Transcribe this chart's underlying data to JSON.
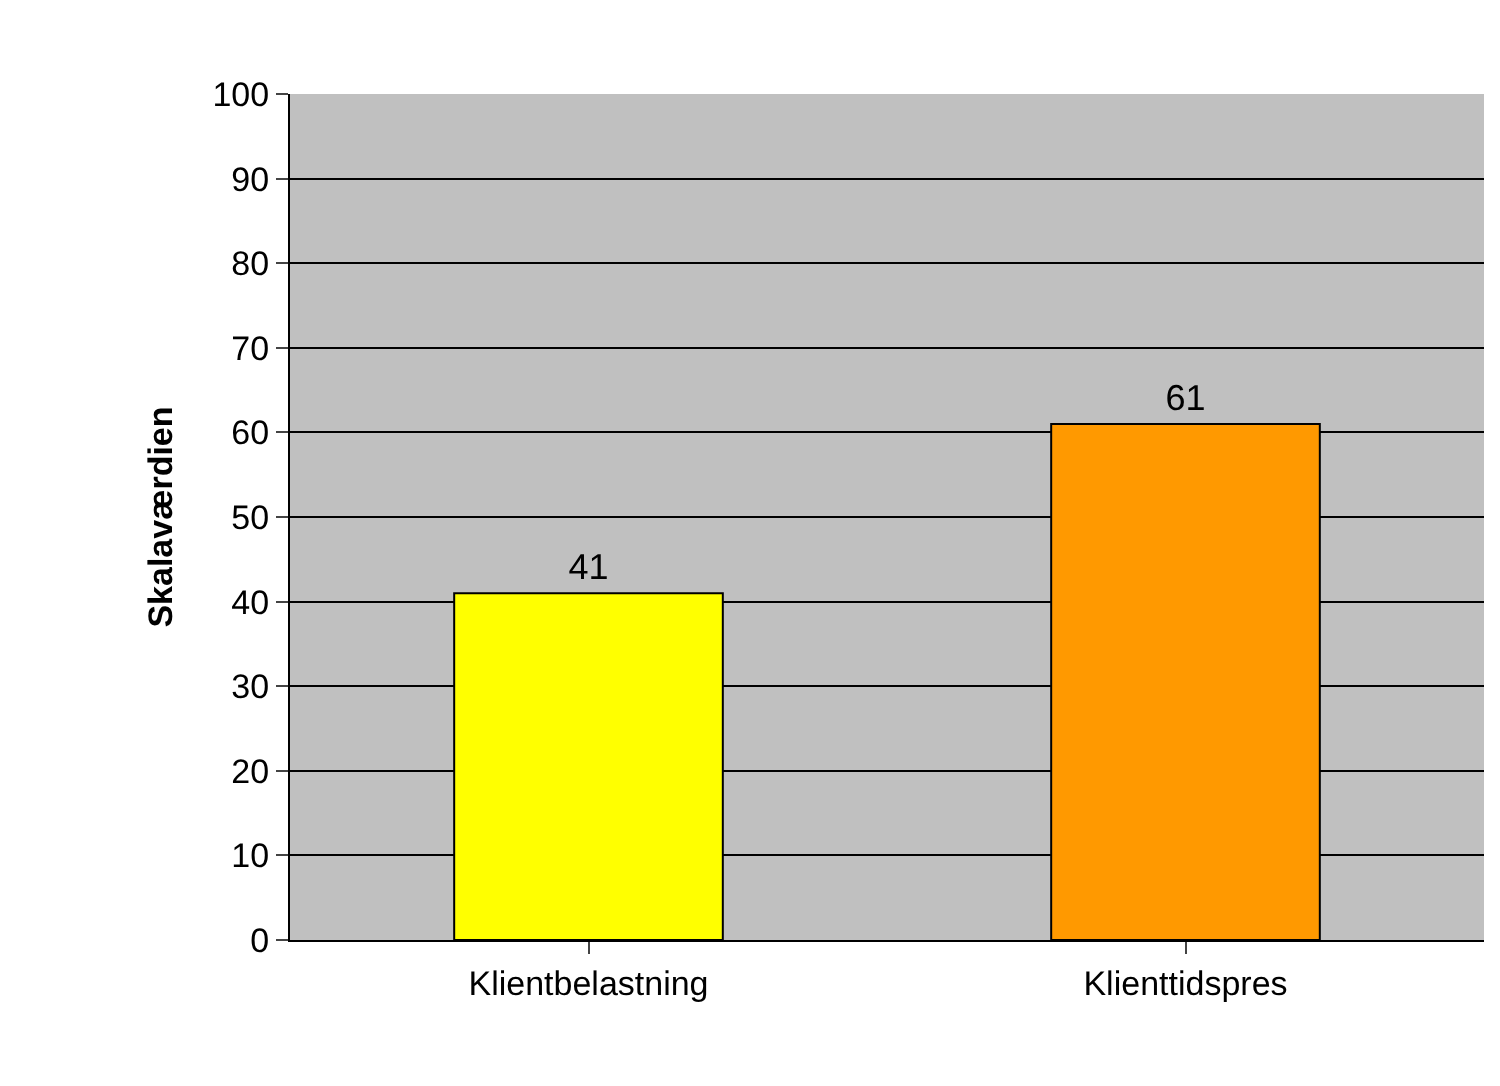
{
  "chart_data": {
    "type": "bar",
    "ylabel": "Skalaværdien",
    "categories": [
      "Klientbelastning",
      "Klienttidspres"
    ],
    "values": [
      41,
      61
    ],
    "colors": [
      "#ffff00",
      "#ff9900"
    ],
    "ylim": [
      0,
      100
    ],
    "yticks": [
      0,
      10,
      20,
      30,
      40,
      50,
      60,
      70,
      80,
      90,
      100
    ],
    "grid": "y",
    "data_labels": true,
    "legend": false
  }
}
